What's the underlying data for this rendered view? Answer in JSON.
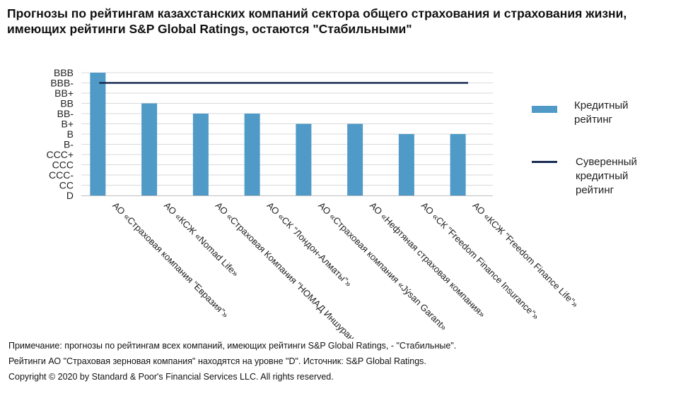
{
  "title": {
    "line1": "Прогнозы по рейтингам казахстанских компаний сектора общего страхования и страхования жизни,",
    "line2": "имеющих рейтинги S&P Global Ratings, остаются \"Стабильными\""
  },
  "legend": {
    "bar_label": "Кредитный рейтинг",
    "line_label": "Суверенный кредитный рейтинг"
  },
  "colors": {
    "bar": "#4f9ac7",
    "sovereign_line": "#1a2b52",
    "grid": "#d9d9d9",
    "axis": "#bfbfbf"
  },
  "chart_data": {
    "type": "bar",
    "y_scale": [
      "D",
      "CC",
      "CCC-",
      "CCC",
      "CCC+",
      "B-",
      "B",
      "B+",
      "BB-",
      "BB",
      "BB+",
      "BBB-",
      "BBB"
    ],
    "categories": [
      "АО «Страховая компания \"Евразия\"»",
      "АО «КСЖ «Nomad Life»",
      "АО «Страховая Компания \"НОМАД Иншуранс\"»",
      "АО «СК \"Лондон-Алматы\"»",
      "АО «Страховая компания «Jýsan Garant»",
      "АО «Нефтяная страховая компания»",
      "АО «СК \"Freedom Finance Insurance\"»",
      "АО «КСЖ \"Freedom Finance Life\"»"
    ],
    "series": [
      {
        "name": "Кредитный рейтинг",
        "type": "bar",
        "values": [
          "BBB",
          "BB",
          "BB-",
          "BB-",
          "B+",
          "B+",
          "B",
          "B"
        ]
      },
      {
        "name": "Суверенный кредитный рейтинг",
        "type": "line",
        "values": [
          "BBB-",
          "BBB-",
          "BBB-",
          "BBB-",
          "BBB-",
          "BBB-",
          "BBB-",
          "BBB-"
        ]
      }
    ],
    "grid": true,
    "legend_position": "right"
  },
  "notes": {
    "line1": "Примечание: прогнозы по рейтингам всех компаний, имеющих рейтинги S&P Global Ratings, - \"Стабильные\".",
    "line2": "Рейтинги АО \"Страховая зерновая компания\" находятся на уровне \"D\". Источник: S&P Global Ratings.",
    "line3": "Copyright © 2020 by Standard & Poor's Financial Services LLC. All rights reserved."
  }
}
